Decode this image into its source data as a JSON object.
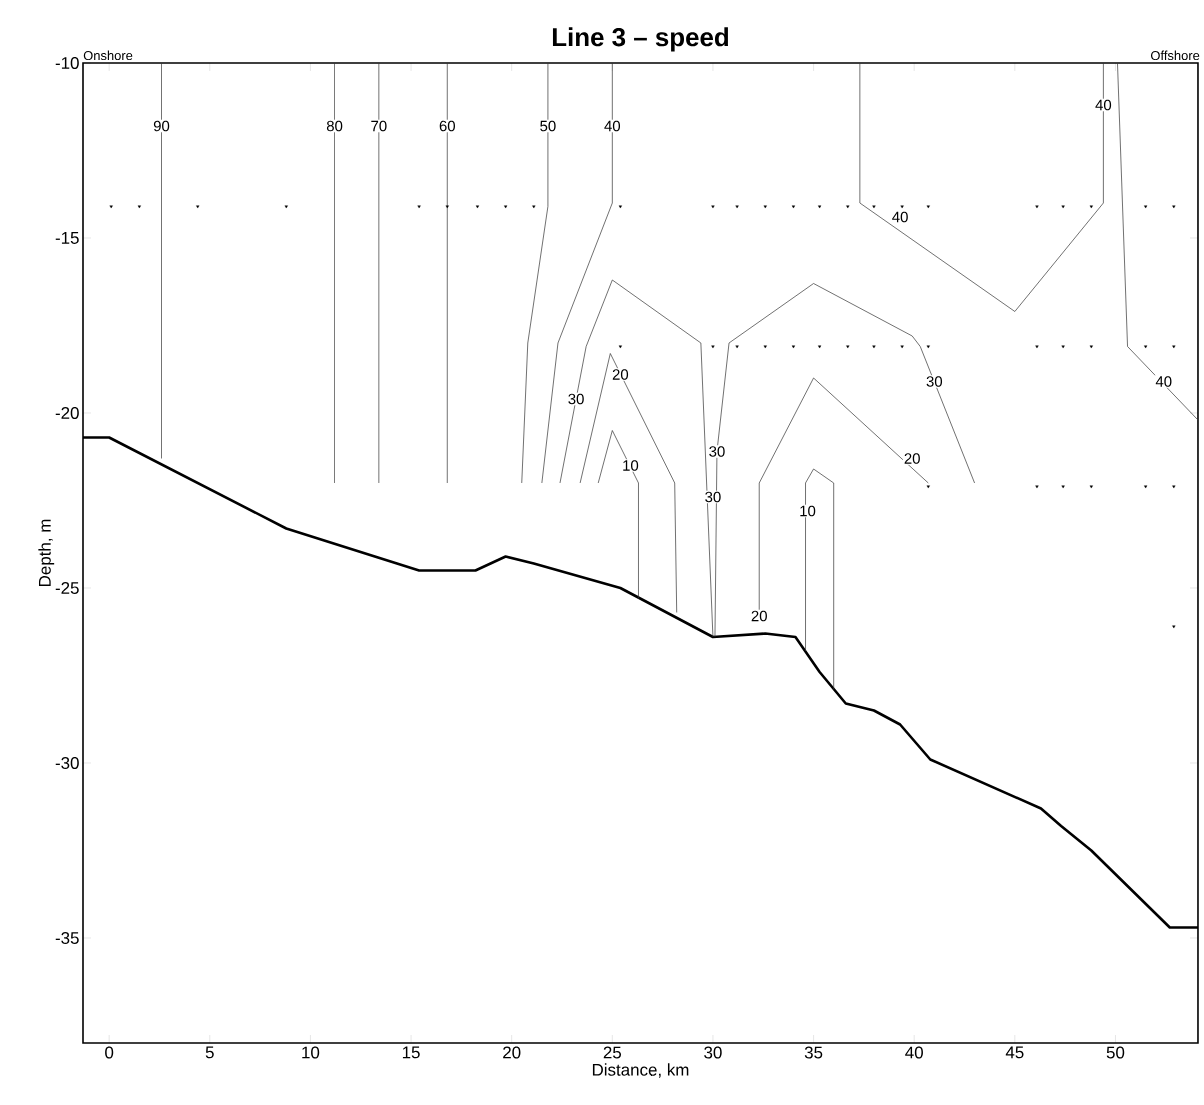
{
  "chart_data": {
    "type": "line",
    "title": "Line 3 – speed",
    "xlabel": "Distance, km",
    "ylabel": "Depth, m",
    "xlim": [
      -1.3,
      54.1
    ],
    "ylim": [
      -38,
      -10
    ],
    "xticks": [
      0,
      5,
      10,
      15,
      20,
      25,
      30,
      35,
      40,
      45,
      50
    ],
    "yticks": [
      -35,
      -30,
      -25,
      -20,
      -15,
      -10
    ],
    "series": [
      {
        "color": "#000000",
        "x": [
          -1.3,
          0,
          8.8,
          15.4,
          16.8,
          18.2,
          19.7,
          21.1,
          25.4,
          30.0,
          32.6,
          34.1,
          35.3,
          36.6,
          38.0,
          39.3,
          40.8,
          46.3,
          47.3,
          48.8,
          52.7,
          54.1
        ],
        "values": [
          -20.7,
          -20.7,
          -23.3,
          -24.5,
          -24.5,
          -24.5,
          -24.1,
          -24.3,
          -25.0,
          -26.4,
          -26.3,
          -26.4,
          -27.4,
          -28.3,
          -28.5,
          -28.9,
          -29.9,
          -31.3,
          -31.8,
          -32.5,
          -34.7,
          -34.7
        ]
      },
      {
        "color": "#333333",
        "x": [
          2.6,
          2.6
        ],
        "values": [
          -10,
          -21.3
        ]
      },
      {
        "color": "#333333",
        "x": [
          11.2,
          11.2
        ],
        "values": [
          -10,
          -22.0
        ]
      },
      {
        "color": "#333333",
        "x": [
          13.4,
          13.4
        ],
        "values": [
          -10,
          -22.0
        ]
      },
      {
        "color": "#333333",
        "x": [
          16.8,
          16.8
        ],
        "values": [
          -10,
          -22.0
        ]
      },
      {
        "color": "#333333",
        "x": [
          21.8,
          21.8,
          20.8,
          20.5
        ],
        "values": [
          -10,
          -14.1,
          -18.0,
          -22.0
        ]
      },
      {
        "color": "#333333",
        "x": [
          25.0,
          25.0,
          22.3,
          21.5
        ],
        "values": [
          -10,
          -14.0,
          -18.0,
          -22.0
        ]
      },
      {
        "color": "#333333",
        "x": [
          22.4,
          23.7,
          25.0,
          29.4,
          30.0
        ],
        "values": [
          -22.0,
          -18.1,
          -16.2,
          -18.0,
          -26.4
        ]
      },
      {
        "color": "#333333",
        "x": [
          30.1,
          30.2,
          30.8,
          35.0,
          39.9,
          40.3,
          43.0
        ],
        "values": [
          -26.4,
          -21.1,
          -18.0,
          -16.3,
          -17.8,
          -18.1,
          -22.0
        ]
      },
      {
        "color": "#333333",
        "x": [
          23.4,
          24.9,
          28.1,
          28.2
        ],
        "values": [
          -22.0,
          -18.3,
          -22.0,
          -25.7
        ]
      },
      {
        "color": "#333333",
        "x": [
          24.3,
          25.0,
          26.3,
          26.3
        ],
        "values": [
          -22.0,
          -20.5,
          -22.0,
          -25.3
        ]
      },
      {
        "color": "#333333",
        "x": [
          32.3,
          32.3,
          35.0,
          40.7
        ],
        "values": [
          -25.7,
          -22.0,
          -19.0,
          -22.0
        ]
      },
      {
        "color": "#333333",
        "x": [
          34.6,
          34.6,
          35.0,
          36.0,
          36.0
        ],
        "values": [
          -26.8,
          -22.0,
          -21.6,
          -22.0,
          -27.9
        ]
      },
      {
        "color": "#333333",
        "x": [
          37.3,
          37.3,
          45.0,
          49.4,
          49.4
        ],
        "values": [
          -10,
          -14.0,
          -17.1,
          -14.0,
          -10
        ]
      },
      {
        "color": "#333333",
        "x": [
          50.1,
          50.6,
          54.1
        ],
        "values": [
          -10,
          -18.1,
          -20.2
        ]
      },
      {
        "type": "scatter",
        "color": "#000000",
        "marker": "triangle",
        "x": [
          0.1,
          1.5,
          4.4,
          8.8,
          15.4,
          16.8,
          18.3,
          19.7,
          21.1,
          25.4,
          30.0,
          31.2,
          32.6,
          34.0,
          35.3,
          36.7,
          38.0,
          39.4,
          40.7,
          46.1,
          47.4,
          48.8,
          51.5,
          52.9,
          25.4,
          30.0,
          31.2,
          32.6,
          34.0,
          35.3,
          36.7,
          38.0,
          39.4,
          40.7,
          46.1,
          47.4,
          48.8,
          51.5,
          52.9,
          40.7,
          46.1,
          47.4,
          48.8,
          51.5,
          52.9,
          52.9
        ],
        "values": [
          -14.1,
          -14.1,
          -14.1,
          -14.1,
          -14.1,
          -14.1,
          -14.1,
          -14.1,
          -14.1,
          -14.1,
          -14.1,
          -14.1,
          -14.1,
          -14.1,
          -14.1,
          -14.1,
          -14.1,
          -14.1,
          -14.1,
          -14.1,
          -14.1,
          -14.1,
          -14.1,
          -14.1,
          -18.1,
          -18.1,
          -18.1,
          -18.1,
          -18.1,
          -18.1,
          -18.1,
          -18.1,
          -18.1,
          -18.1,
          -18.1,
          -18.1,
          -18.1,
          -18.1,
          -18.1,
          -22.1,
          -22.1,
          -22.1,
          -22.1,
          -22.1,
          -22.1,
          -26.1
        ]
      }
    ],
    "annotations": [
      "Onshore",
      "Offshore",
      {
        "text": "90",
        "x": 2.6,
        "y": -11.8
      },
      {
        "text": "80",
        "x": 11.2,
        "y": -11.8
      },
      {
        "text": "70",
        "x": 13.4,
        "y": -11.8
      },
      {
        "text": "60",
        "x": 16.8,
        "y": -11.8
      },
      {
        "text": "50",
        "x": 21.8,
        "y": -11.8
      },
      {
        "text": "40",
        "x": 25.0,
        "y": -11.8
      },
      {
        "text": "30",
        "x": 23.2,
        "y": -19.6
      },
      {
        "text": "20",
        "x": 25.4,
        "y": -18.9
      },
      {
        "text": "10",
        "x": 25.9,
        "y": -21.5
      },
      {
        "text": "30",
        "x": 30.2,
        "y": -21.1
      },
      {
        "text": "30",
        "x": 30.0,
        "y": -22.4
      },
      {
        "text": "20",
        "x": 32.3,
        "y": -25.8
      },
      {
        "text": "10",
        "x": 34.7,
        "y": -22.8
      },
      {
        "text": "20",
        "x": 39.9,
        "y": -21.3
      },
      {
        "text": "30",
        "x": 41.0,
        "y": -19.1
      },
      {
        "text": "40",
        "x": 39.3,
        "y": -14.4
      },
      {
        "text": "40",
        "x": 49.4,
        "y": -11.2
      },
      {
        "text": "40",
        "x": 52.4,
        "y": -19.1
      }
    ]
  }
}
